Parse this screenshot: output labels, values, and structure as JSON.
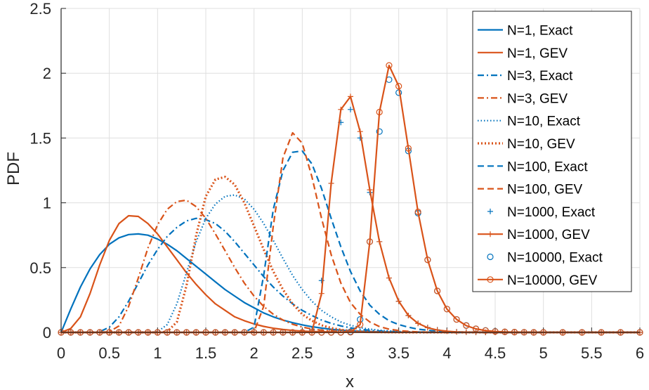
{
  "chart_data": {
    "type": "line",
    "xlabel": "x",
    "ylabel": "PDF",
    "xlim": [
      0,
      6
    ],
    "ylim": [
      0,
      2.5
    ],
    "xticks": [
      "0",
      "0.5",
      "1",
      "1.5",
      "2",
      "2.5",
      "3",
      "3.5",
      "4",
      "4.5",
      "5",
      "5.5",
      "6"
    ],
    "yticks": [
      "0",
      "0.5",
      "1",
      "1.5",
      "2",
      "2.5"
    ],
    "grid": true,
    "legend_position": "top-right",
    "colors": {
      "exact": "#0072BD",
      "gev": "#D95319",
      "grid": "#dfdfdf",
      "axis": "#262626"
    },
    "x": [
      0,
      0.1,
      0.2,
      0.3,
      0.4,
      0.5,
      0.6,
      0.7,
      0.8,
      0.9,
      1.0,
      1.1,
      1.2,
      1.3,
      1.4,
      1.5,
      1.6,
      1.7,
      1.8,
      1.9,
      2.0,
      2.1,
      2.2,
      2.3,
      2.4,
      2.5,
      2.6,
      2.7,
      2.8,
      2.9,
      3.0,
      3.1,
      3.2,
      3.3,
      3.4,
      3.5,
      3.6,
      3.7,
      3.8,
      3.9,
      4.0,
      4.1,
      4.2,
      4.3,
      4.4,
      4.5,
      4.6,
      4.7,
      4.8,
      4.9,
      5.0,
      5.2,
      5.4,
      5.6,
      5.8,
      6.0
    ],
    "series": [
      {
        "name": "N=1, Exact",
        "style": "solid",
        "color": "exact",
        "values": [
          0,
          0.18,
          0.35,
          0.49,
          0.6,
          0.68,
          0.73,
          0.755,
          0.76,
          0.75,
          0.72,
          0.68,
          0.63,
          0.57,
          0.51,
          0.45,
          0.39,
          0.33,
          0.28,
          0.23,
          0.19,
          0.15,
          0.12,
          0.095,
          0.075,
          0.058,
          0.044,
          0.033,
          0.024,
          0.017,
          0.012,
          0.009,
          0.006,
          0.004,
          0.003,
          0.002,
          0.001,
          0.001,
          0,
          0,
          0,
          0,
          0,
          0,
          0,
          0,
          0,
          0,
          0,
          0,
          0,
          0,
          0,
          0,
          0,
          0
        ]
      },
      {
        "name": "N=1, GEV",
        "style": "solid",
        "color": "gev",
        "values": [
          0,
          0.03,
          0.12,
          0.3,
          0.52,
          0.71,
          0.84,
          0.9,
          0.895,
          0.84,
          0.76,
          0.66,
          0.56,
          0.46,
          0.37,
          0.29,
          0.22,
          0.17,
          0.12,
          0.09,
          0.065,
          0.046,
          0.032,
          0.022,
          0.015,
          0.01,
          0.007,
          0.005,
          0.003,
          0.002,
          0.001,
          0.001,
          0,
          0,
          0,
          0,
          0,
          0,
          0,
          0,
          0,
          0,
          0,
          0,
          0,
          0,
          0,
          0,
          0,
          0,
          0,
          0,
          0,
          0,
          0,
          0
        ]
      },
      {
        "name": "N=3, Exact",
        "style": "dashdot",
        "color": "exact",
        "values": [
          0,
          0,
          0,
          0,
          0.005,
          0.04,
          0.12,
          0.24,
          0.38,
          0.52,
          0.64,
          0.74,
          0.81,
          0.86,
          0.88,
          0.87,
          0.84,
          0.78,
          0.7,
          0.61,
          0.52,
          0.43,
          0.35,
          0.28,
          0.22,
          0.17,
          0.13,
          0.095,
          0.07,
          0.05,
          0.035,
          0.024,
          0.016,
          0.011,
          0.007,
          0.005,
          0.003,
          0.002,
          0.001,
          0.001,
          0,
          0,
          0,
          0,
          0,
          0,
          0,
          0,
          0,
          0,
          0,
          0,
          0,
          0,
          0,
          0
        ]
      },
      {
        "name": "N=3, GEV",
        "style": "dashdot",
        "color": "gev",
        "values": [
          0,
          0,
          0,
          0,
          0,
          0.005,
          0.05,
          0.2,
          0.42,
          0.65,
          0.83,
          0.95,
          1.01,
          1.02,
          0.97,
          0.88,
          0.76,
          0.63,
          0.5,
          0.38,
          0.28,
          0.2,
          0.14,
          0.095,
          0.063,
          0.041,
          0.026,
          0.017,
          0.011,
          0.007,
          0.004,
          0.003,
          0.002,
          0.001,
          0,
          0,
          0,
          0,
          0,
          0,
          0,
          0,
          0,
          0,
          0,
          0,
          0,
          0,
          0,
          0,
          0,
          0,
          0,
          0,
          0,
          0
        ]
      },
      {
        "name": "N=10, Exact",
        "style": "dotted",
        "color": "exact",
        "values": [
          0,
          0,
          0,
          0,
          0,
          0,
          0,
          0,
          0,
          0,
          0.005,
          0.06,
          0.22,
          0.46,
          0.7,
          0.88,
          0.99,
          1.05,
          1.06,
          1.03,
          0.95,
          0.84,
          0.71,
          0.57,
          0.44,
          0.33,
          0.24,
          0.17,
          0.12,
          0.08,
          0.055,
          0.037,
          0.025,
          0.017,
          0.011,
          0.007,
          0.005,
          0.003,
          0.002,
          0.001,
          0.001,
          0,
          0,
          0,
          0,
          0,
          0,
          0,
          0,
          0,
          0,
          0,
          0,
          0,
          0,
          0
        ]
      },
      {
        "name": "N=10, GEV",
        "style": "thickdot",
        "color": "gev",
        "values": [
          0,
          0,
          0,
          0,
          0,
          0,
          0,
          0,
          0,
          0,
          0,
          0.005,
          0.08,
          0.36,
          0.75,
          1.05,
          1.18,
          1.2,
          1.14,
          1.0,
          0.82,
          0.64,
          0.47,
          0.33,
          0.22,
          0.14,
          0.09,
          0.055,
          0.034,
          0.02,
          0.012,
          0.007,
          0.004,
          0.002,
          0.001,
          0,
          0,
          0,
          0,
          0,
          0,
          0,
          0,
          0,
          0,
          0,
          0,
          0,
          0,
          0,
          0,
          0,
          0,
          0,
          0,
          0
        ]
      },
      {
        "name": "N=100, Exact",
        "style": "dashed",
        "color": "exact",
        "values": [
          0,
          0,
          0,
          0,
          0,
          0,
          0,
          0,
          0,
          0,
          0,
          0,
          0,
          0,
          0,
          0,
          0,
          0,
          0,
          0,
          0.04,
          0.44,
          0.95,
          1.25,
          1.39,
          1.4,
          1.3,
          1.11,
          0.88,
          0.66,
          0.47,
          0.32,
          0.21,
          0.14,
          0.09,
          0.06,
          0.04,
          0.025,
          0.016,
          0.01,
          0.006,
          0.004,
          0.002,
          0.001,
          0,
          0,
          0,
          0,
          0,
          0,
          0,
          0,
          0,
          0,
          0,
          0
        ]
      },
      {
        "name": "N=100, GEV",
        "style": "dashed",
        "color": "gev",
        "values": [
          0,
          0,
          0,
          0,
          0,
          0,
          0,
          0,
          0,
          0,
          0,
          0,
          0,
          0,
          0,
          0,
          0,
          0,
          0,
          0,
          0.005,
          0.2,
          0.82,
          1.35,
          1.54,
          1.46,
          1.2,
          0.88,
          0.6,
          0.38,
          0.23,
          0.14,
          0.08,
          0.045,
          0.025,
          0.014,
          0.008,
          0.004,
          0.002,
          0.001,
          0,
          0,
          0,
          0,
          0,
          0,
          0,
          0,
          0,
          0,
          0,
          0,
          0,
          0,
          0,
          0
        ]
      },
      {
        "name": "N=1000, Exact",
        "style": "marker-plus",
        "color": "exact",
        "values": [
          0,
          0,
          0,
          0,
          0,
          0,
          0,
          0,
          0,
          0,
          0,
          0,
          0,
          0,
          0,
          0,
          0,
          0,
          0,
          0,
          0,
          0,
          0,
          0,
          0,
          0,
          0.02,
          0.4,
          1.15,
          1.62,
          1.72,
          1.5,
          1.08,
          0.7,
          0.42,
          0.24,
          0.13,
          0.07,
          0.038,
          0.02,
          0.01,
          0.005,
          0.003,
          0.001,
          0,
          0,
          0,
          0,
          0,
          0,
          0,
          0,
          0,
          0,
          0,
          0
        ]
      },
      {
        "name": "N=1000, GEV",
        "style": "line-plus",
        "color": "gev",
        "values": [
          0,
          0,
          0,
          0,
          0,
          0,
          0,
          0,
          0,
          0,
          0,
          0,
          0,
          0,
          0,
          0,
          0,
          0,
          0,
          0,
          0,
          0,
          0,
          0,
          0,
          0,
          0.005,
          0.3,
          1.15,
          1.72,
          1.82,
          1.55,
          1.1,
          0.7,
          0.42,
          0.24,
          0.13,
          0.07,
          0.036,
          0.018,
          0.009,
          0.004,
          0.002,
          0.001,
          0,
          0,
          0,
          0,
          0,
          0,
          0,
          0,
          0,
          0,
          0,
          0
        ]
      },
      {
        "name": "N=10000, Exact",
        "style": "marker-circle",
        "color": "exact",
        "values": [
          0,
          0,
          0,
          0,
          0,
          0,
          0,
          0,
          0,
          0,
          0,
          0,
          0,
          0,
          0,
          0,
          0,
          0,
          0,
          0,
          0,
          0,
          0,
          0,
          0,
          0,
          0,
          0,
          0,
          0,
          0.005,
          0.1,
          0.7,
          1.55,
          1.95,
          1.85,
          1.4,
          0.92,
          0.56,
          0.32,
          0.18,
          0.1,
          0.054,
          0.028,
          0.015,
          0.008,
          0.004,
          0.002,
          0.001,
          0,
          0,
          0,
          0,
          0,
          0,
          0
        ]
      },
      {
        "name": "N=10000, GEV",
        "style": "line-circle",
        "color": "gev",
        "values": [
          0,
          0,
          0,
          0,
          0,
          0,
          0,
          0,
          0,
          0,
          0,
          0,
          0,
          0,
          0,
          0,
          0,
          0,
          0,
          0,
          0,
          0,
          0,
          0,
          0,
          0,
          0,
          0,
          0,
          0,
          0.001,
          0.06,
          0.7,
          1.7,
          2.06,
          1.9,
          1.42,
          0.93,
          0.56,
          0.32,
          0.18,
          0.1,
          0.052,
          0.027,
          0.014,
          0.007,
          0.004,
          0.002,
          0.001,
          0,
          0,
          0,
          0,
          0,
          0,
          0
        ]
      }
    ]
  }
}
